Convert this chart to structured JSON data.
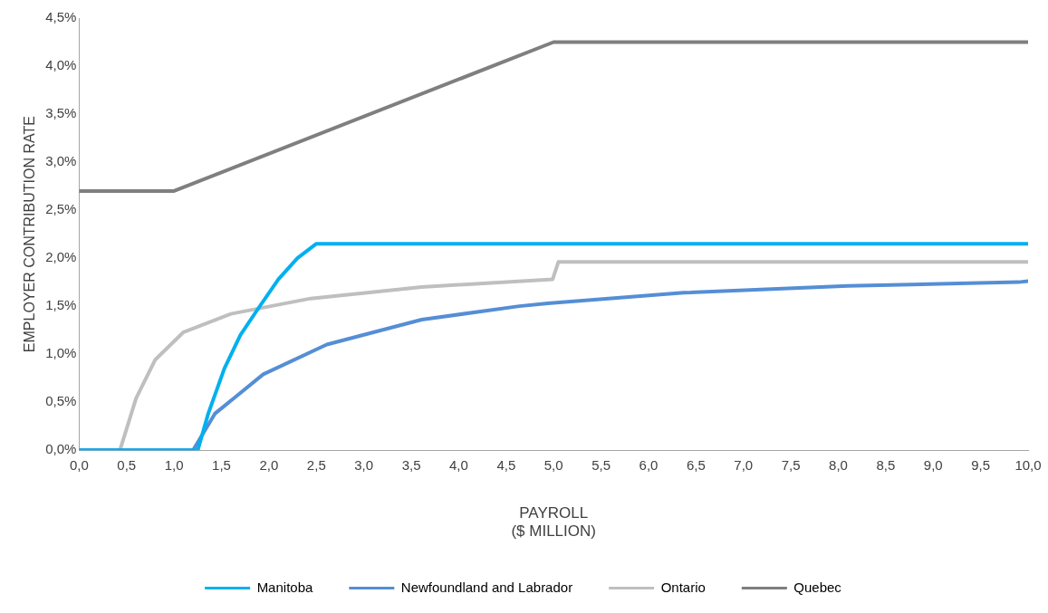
{
  "chart_data": {
    "type": "line",
    "xlabel": "PAYROLL\n($ MILLION)",
    "ylabel": "EMPLOYER CONTRIBUTION RATE",
    "xlim": [
      0,
      10
    ],
    "ylim": [
      0,
      4.5
    ],
    "xticks": [
      {
        "value": 0,
        "label": "0,0"
      },
      {
        "value": 0.5,
        "label": "0,5"
      },
      {
        "value": 1,
        "label": "1,0"
      },
      {
        "value": 1.5,
        "label": "1,5"
      },
      {
        "value": 2,
        "label": "2,0"
      },
      {
        "value": 2.5,
        "label": "2,5"
      },
      {
        "value": 3,
        "label": "3,0"
      },
      {
        "value": 3.5,
        "label": "3,5"
      },
      {
        "value": 4,
        "label": "4,0"
      },
      {
        "value": 4.5,
        "label": "4,5"
      },
      {
        "value": 5,
        "label": "5,0"
      },
      {
        "value": 5.5,
        "label": "5,5"
      },
      {
        "value": 6,
        "label": "6,0"
      },
      {
        "value": 6.5,
        "label": "6,5"
      },
      {
        "value": 7,
        "label": "7,0"
      },
      {
        "value": 7.5,
        "label": "7,5"
      },
      {
        "value": 8,
        "label": "8,0"
      },
      {
        "value": 8.5,
        "label": "8,5"
      },
      {
        "value": 9,
        "label": "9,0"
      },
      {
        "value": 9.5,
        "label": "9,5"
      },
      {
        "value": 10,
        "label": "10,0"
      }
    ],
    "yticks": [
      {
        "value": 0,
        "label": "0,0%"
      },
      {
        "value": 0.5,
        "label": "0,5%"
      },
      {
        "value": 1,
        "label": "1,0%"
      },
      {
        "value": 1.5,
        "label": "1,5%"
      },
      {
        "value": 2,
        "label": "2,0%"
      },
      {
        "value": 2.5,
        "label": "2,5%"
      },
      {
        "value": 3,
        "label": "3,0%"
      },
      {
        "value": 3.5,
        "label": "3,5%"
      },
      {
        "value": 4,
        "label": "4,0%"
      },
      {
        "value": 4.5,
        "label": "4,5%"
      }
    ],
    "grid": false,
    "legend": "bottom",
    "marker": "none",
    "line_style": "solid",
    "series": [
      {
        "name": "Manitoba",
        "color": "#00b0f0",
        "x": [
          0,
          1.25,
          1.36,
          1.53,
          1.7,
          1.89,
          2.1,
          2.3,
          2.5,
          10
        ],
        "values": [
          0,
          0,
          0.38,
          0.85,
          1.2,
          1.48,
          1.78,
          2.0,
          2.15,
          2.15
        ]
      },
      {
        "name": "Newfoundland and Labrador",
        "color": "#558ed5",
        "x": [
          0,
          1.2,
          1.43,
          1.94,
          2.61,
          3.61,
          4.64,
          4.94,
          6.37,
          8.1,
          9.9,
          10
        ],
        "values": [
          0,
          0,
          0.38,
          0.79,
          1.1,
          1.36,
          1.5,
          1.53,
          1.64,
          1.71,
          1.75,
          1.76
        ]
      },
      {
        "name": "Ontario",
        "color": "#bfbfbf",
        "x": [
          0,
          0.43,
          0.6,
          0.8,
          1.1,
          1.6,
          2.44,
          3.61,
          4.99,
          5.05,
          10
        ],
        "values": [
          0,
          0,
          0.54,
          0.94,
          1.23,
          1.42,
          1.58,
          1.7,
          1.78,
          1.96,
          1.96
        ]
      },
      {
        "name": "Quebec",
        "color": "#7f7f7f",
        "x": [
          0,
          1,
          5,
          10
        ],
        "values": [
          2.7,
          2.7,
          4.25,
          4.25
        ]
      }
    ]
  }
}
